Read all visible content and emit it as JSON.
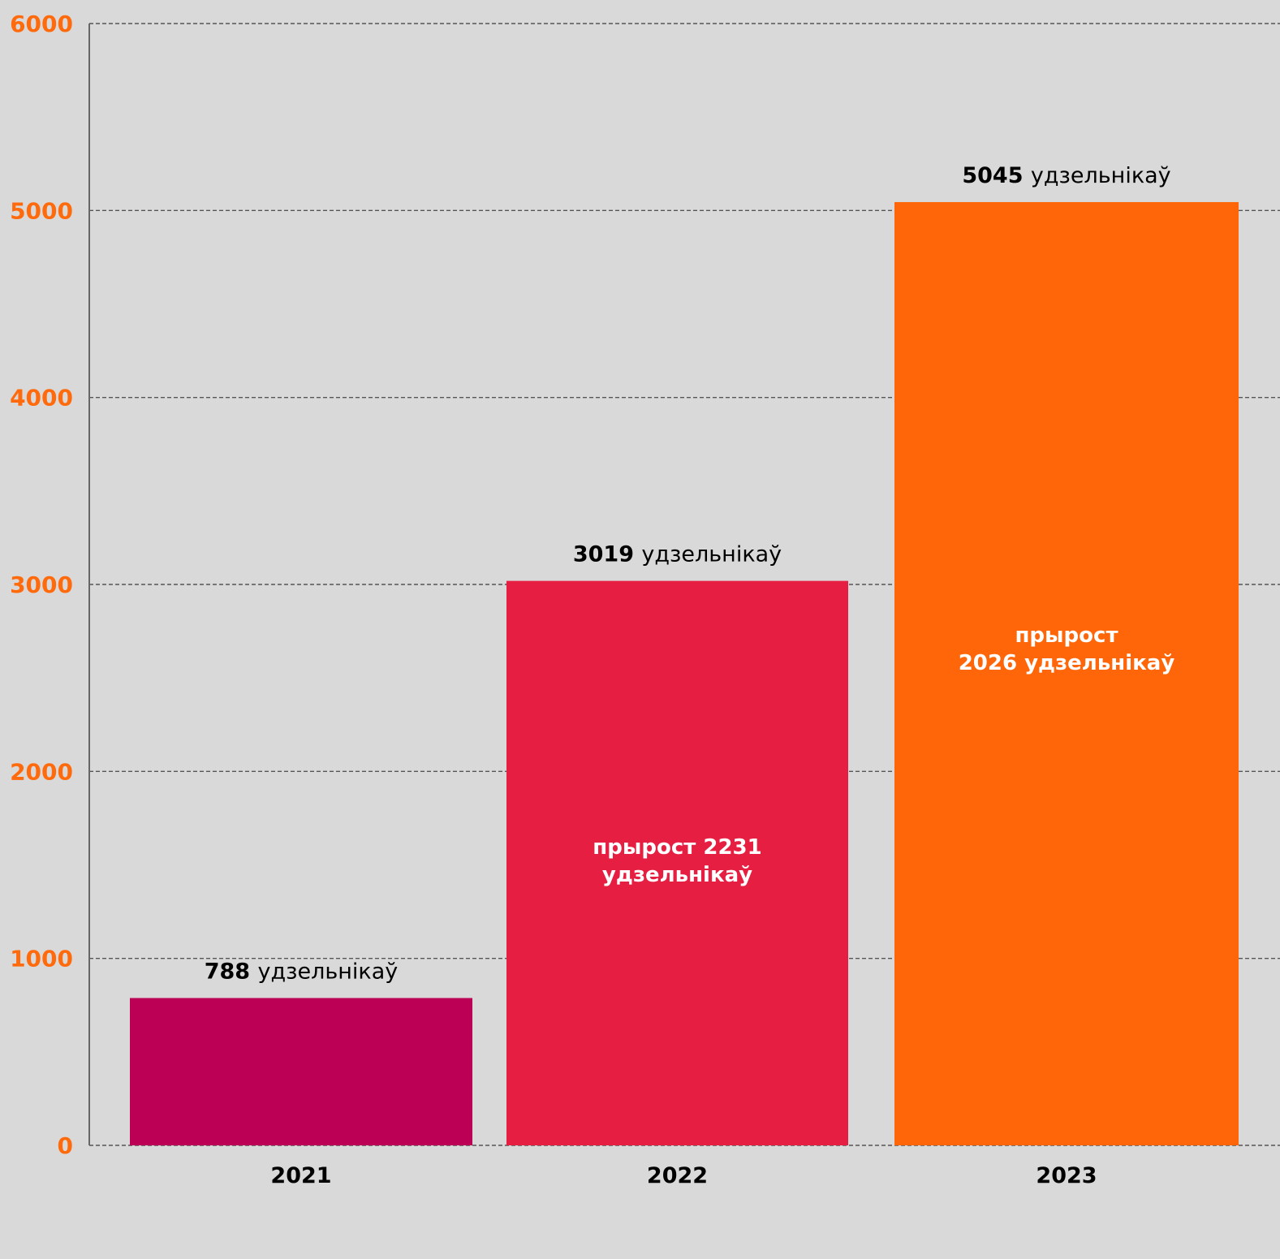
{
  "colors": {
    "background": "#d9d9d9",
    "tick_label": "#ff6a0d",
    "grid": "#555555",
    "axis": "#666666"
  },
  "chart_data": {
    "type": "bar",
    "categories": [
      "2021",
      "2022",
      "2023"
    ],
    "values": [
      788,
      3019,
      5045
    ],
    "bar_colors": [
      "#bb0055",
      "#e51e42",
      "#ff660a"
    ],
    "ylim": [
      0,
      6000
    ],
    "yticks": [
      0,
      1000,
      2000,
      3000,
      4000,
      5000,
      6000
    ],
    "grid": true,
    "grid_style": "dashed",
    "value_labels": [
      {
        "value": "788",
        "unit": "удзельнікаў"
      },
      {
        "value": "3019",
        "unit": "удзельнікаў"
      },
      {
        "value": "5045",
        "unit": "удзельнікаў"
      }
    ],
    "inner_labels": [
      [],
      [
        "прырост 2231",
        "удзельнікаў"
      ],
      [
        "прырост",
        "2026 удзельнікаў"
      ]
    ],
    "xlabel": "",
    "ylabel": ""
  }
}
